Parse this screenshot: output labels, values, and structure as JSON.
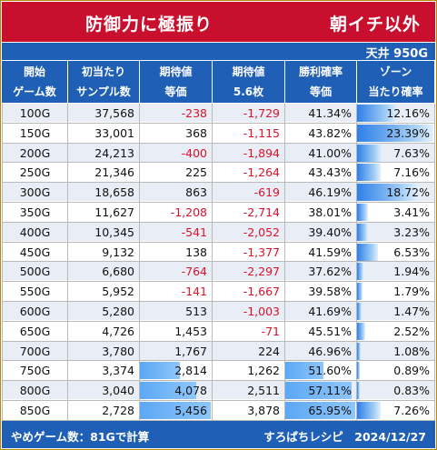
{
  "title": {
    "left": "防御力に極振り",
    "right": "朝イチ以外"
  },
  "ceiling": "天井 950G",
  "headers": [
    [
      "開始",
      "ゲーム数"
    ],
    [
      "初当たり",
      "サンプル数"
    ],
    [
      "期待値",
      "等価"
    ],
    [
      "期待値",
      "5.6枚"
    ],
    [
      "勝利確率",
      "等価"
    ],
    [
      "ゾーン",
      "当たり確率"
    ]
  ],
  "rows": [
    {
      "game": "100G",
      "samples": "37,568",
      "ev": "-238",
      "ev56": "-1,729",
      "win": "41.34%",
      "zone": "12.16%",
      "zone_pct": 12.16,
      "shade": "a"
    },
    {
      "game": "150G",
      "samples": "33,001",
      "ev": "368",
      "ev56": "-1,115",
      "win": "43.82%",
      "zone": "23.39%",
      "zone_pct": 23.39,
      "shade": "b"
    },
    {
      "game": "200G",
      "samples": "24,213",
      "ev": "-400",
      "ev56": "-1,894",
      "win": "41.00%",
      "zone": "7.63%",
      "zone_pct": 7.63,
      "shade": "a"
    },
    {
      "game": "250G",
      "samples": "21,346",
      "ev": "225",
      "ev56": "-1,264",
      "win": "43.43%",
      "zone": "7.16%",
      "zone_pct": 7.16,
      "shade": "b"
    },
    {
      "game": "300G",
      "samples": "18,658",
      "ev": "863",
      "ev56": "-619",
      "win": "46.19%",
      "zone": "18.72%",
      "zone_pct": 18.72,
      "shade": "a"
    },
    {
      "game": "350G",
      "samples": "11,627",
      "ev": "-1,208",
      "ev56": "-2,714",
      "win": "38.01%",
      "zone": "3.41%",
      "zone_pct": 3.41,
      "shade": "b"
    },
    {
      "game": "400G",
      "samples": "10,345",
      "ev": "-541",
      "ev56": "-2,052",
      "win": "39.40%",
      "zone": "3.23%",
      "zone_pct": 3.23,
      "shade": "a"
    },
    {
      "game": "450G",
      "samples": "9,132",
      "ev": "138",
      "ev56": "-1,377",
      "win": "41.59%",
      "zone": "6.53%",
      "zone_pct": 6.53,
      "shade": "b"
    },
    {
      "game": "500G",
      "samples": "6,680",
      "ev": "-764",
      "ev56": "-2,297",
      "win": "37.62%",
      "zone": "1.94%",
      "zone_pct": 1.94,
      "shade": "a"
    },
    {
      "game": "550G",
      "samples": "5,952",
      "ev": "-141",
      "ev56": "-1,667",
      "win": "39.58%",
      "zone": "1.79%",
      "zone_pct": 1.79,
      "shade": "b"
    },
    {
      "game": "600G",
      "samples": "5,280",
      "ev": "513",
      "ev56": "-1,003",
      "win": "41.69%",
      "zone": "1.47%",
      "zone_pct": 1.47,
      "shade": "a"
    },
    {
      "game": "650G",
      "samples": "4,726",
      "ev": "1,453",
      "ev56": "-71",
      "win": "45.51%",
      "zone": "2.52%",
      "zone_pct": 2.52,
      "shade": "b"
    },
    {
      "game": "700G",
      "samples": "3,780",
      "ev": "1,767",
      "ev56": "224",
      "win": "46.96%",
      "zone": "1.08%",
      "zone_pct": 1.08,
      "shade": "a"
    },
    {
      "game": "750G",
      "samples": "3,374",
      "ev": "2,814",
      "ev56": "1,262",
      "win": "51.60%",
      "zone": "0.89%",
      "zone_pct": 0.89,
      "shade": "b",
      "ev_bar": 0.56,
      "win_bar": 0.55
    },
    {
      "game": "800G",
      "samples": "3,040",
      "ev": "4,078",
      "ev56": "2,511",
      "win": "57.11%",
      "zone": "0.83%",
      "zone_pct": 0.83,
      "shade": "a",
      "ev_bar": 0.8,
      "win_bar": 0.95
    },
    {
      "game": "850G",
      "samples": "2,728",
      "ev": "5,456",
      "ev56": "3,878",
      "win": "65.95%",
      "zone": "7.26%",
      "zone_pct": 7.26,
      "shade": "b",
      "ev_bar": 1.0,
      "win_bar": 1.0
    }
  ],
  "footer": {
    "left": "やめゲーム数：81Gで計算",
    "right": "すろぱちレシピ　2024/12/27"
  },
  "colors": {
    "title_bg": "#c8102e",
    "header_bg": "#1f5fb5",
    "row_a": "#e9edf5",
    "row_b": "#ffffff",
    "negative": "#e0102a"
  }
}
